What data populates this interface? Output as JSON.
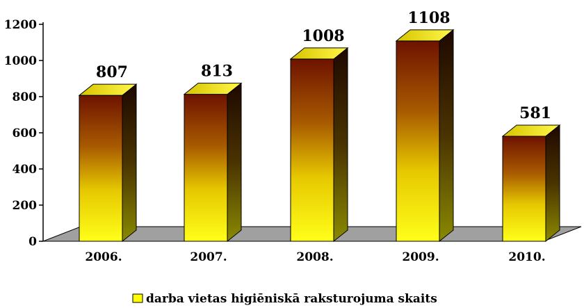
{
  "chart_data": {
    "type": "bar",
    "categories": [
      "2006.",
      "2007.",
      "2008.",
      "2009.",
      "2010."
    ],
    "series": [
      {
        "name": "darba vietas higiēniskā raksturojuma skaits",
        "values": [
          807,
          813,
          1008,
          1108,
          581
        ]
      }
    ],
    "data_labels": [
      "807",
      "813",
      "1008",
      "1108",
      "581"
    ],
    "y_ticks": [
      "0",
      "200",
      "400",
      "600",
      "800",
      "1000",
      "1200"
    ],
    "ylim": [
      0,
      1200
    ],
    "title": "",
    "xlabel": "",
    "ylabel": "",
    "grid": false,
    "legend_position": "bottom",
    "colors": {
      "bar_top": "#fff200",
      "bar_bottom_face": "#ffff00",
      "bar_upper_face": "#7a1a00",
      "bar_side_dark": "#2a0d00",
      "bar_side_light": "#7a7a00",
      "floor": "#9e9e9e"
    }
  }
}
